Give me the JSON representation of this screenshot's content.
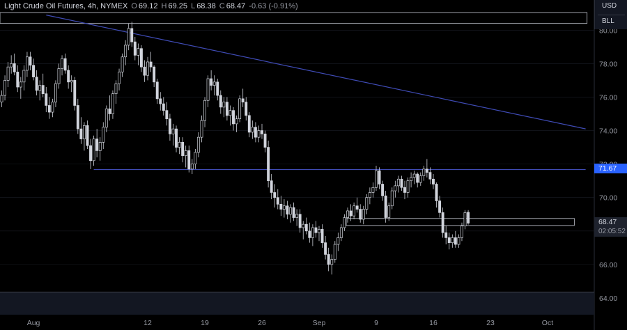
{
  "header": {
    "title": "Light Crude Oil Futures, 4h, NYMEX",
    "open_label": "O",
    "open": "69.12",
    "high_label": "H",
    "high": "69.25",
    "low_label": "L",
    "low": "68.38",
    "close_label": "C",
    "close": "68.47",
    "change": "-0.63 (-0.91%)"
  },
  "currency": {
    "primary": "USD",
    "secondary": "BLL"
  },
  "tags": {
    "level": "71.67",
    "price": "68.47",
    "countdown": "02:05:52"
  },
  "colors": {
    "background": "#000000",
    "candle": "#d1d4dc",
    "trendline": "#3f4bb5",
    "level_tag": "#2962ff",
    "grid": "#1a1d26"
  },
  "chart_data": {
    "type": "candlestick",
    "y_ticks": [
      "64.00",
      "66.00",
      "68.00",
      "70.00",
      "72.00",
      "74.00",
      "76.00",
      "78.00",
      "80.00"
    ],
    "ylim": [
      63.0,
      81.8
    ],
    "x_ticks": [
      "Aug",
      "12",
      "19",
      "26",
      "Sep",
      "9",
      "16",
      "23",
      "Oct"
    ],
    "x_tick_index": [
      10,
      46,
      64,
      82,
      100,
      118,
      136,
      154,
      172
    ],
    "series": [
      [
        75.7,
        76.4,
        75.4,
        76.1
      ],
      [
        76.1,
        77.3,
        75.8,
        77.0
      ],
      [
        77.0,
        78.1,
        76.6,
        77.8
      ],
      [
        77.8,
        78.5,
        77.4,
        78.0
      ],
      [
        78.0,
        78.6,
        77.3,
        77.5
      ],
      [
        77.5,
        77.9,
        76.3,
        76.6
      ],
      [
        76.6,
        77.2,
        75.9,
        76.9
      ],
      [
        76.9,
        77.9,
        76.4,
        77.6
      ],
      [
        77.6,
        78.7,
        77.2,
        78.4
      ],
      [
        78.4,
        78.7,
        77.6,
        77.9
      ],
      [
        77.9,
        78.3,
        77.0,
        77.2
      ],
      [
        77.2,
        77.6,
        76.1,
        76.4
      ],
      [
        76.4,
        77.0,
        75.8,
        76.7
      ],
      [
        76.7,
        77.4,
        76.0,
        76.2
      ],
      [
        76.2,
        76.6,
        75.1,
        75.5
      ],
      [
        75.5,
        76.0,
        74.7,
        75.1
      ],
      [
        75.1,
        75.9,
        74.8,
        75.7
      ],
      [
        75.7,
        77.0,
        75.4,
        76.8
      ],
      [
        76.8,
        78.0,
        76.5,
        77.7
      ],
      [
        77.7,
        78.5,
        77.3,
        78.3
      ],
      [
        78.3,
        78.6,
        77.4,
        77.6
      ],
      [
        77.6,
        77.9,
        76.5,
        76.9
      ],
      [
        76.9,
        77.3,
        76.3,
        77.0
      ],
      [
        77.0,
        77.2,
        75.2,
        75.5
      ],
      [
        75.5,
        75.9,
        73.8,
        74.1
      ],
      [
        74.1,
        74.8,
        73.2,
        73.5
      ],
      [
        73.5,
        74.5,
        72.8,
        74.3
      ],
      [
        74.3,
        74.6,
        72.9,
        73.1
      ],
      [
        73.1,
        73.5,
        71.7,
        72.2
      ],
      [
        72.2,
        73.7,
        71.9,
        73.5
      ],
      [
        73.5,
        74.1,
        72.4,
        72.8
      ],
      [
        72.8,
        73.6,
        72.2,
        73.3
      ],
      [
        73.3,
        74.5,
        72.9,
        74.2
      ],
      [
        74.2,
        75.5,
        73.9,
        75.3
      ],
      [
        75.3,
        76.1,
        74.6,
        75.0
      ],
      [
        75.0,
        76.4,
        74.7,
        76.2
      ],
      [
        76.2,
        77.0,
        75.6,
        76.8
      ],
      [
        76.8,
        77.7,
        76.4,
        77.5
      ],
      [
        77.5,
        78.6,
        77.2,
        78.4
      ],
      [
        78.4,
        79.4,
        77.9,
        79.1
      ],
      [
        79.1,
        80.4,
        78.8,
        80.1
      ],
      [
        80.1,
        80.5,
        79.0,
        79.3
      ],
      [
        79.3,
        79.6,
        78.2,
        78.5
      ],
      [
        78.5,
        79.2,
        77.9,
        78.9
      ],
      [
        78.9,
        79.1,
        77.5,
        77.8
      ],
      [
        77.8,
        78.2,
        76.9,
        77.3
      ],
      [
        77.3,
        78.4,
        77.0,
        78.1
      ],
      [
        78.1,
        78.7,
        77.5,
        77.8
      ],
      [
        77.8,
        77.9,
        76.6,
        76.9
      ],
      [
        76.9,
        77.1,
        75.6,
        75.9
      ],
      [
        75.9,
        76.3,
        75.2,
        75.6
      ],
      [
        75.6,
        76.0,
        74.9,
        75.2
      ],
      [
        75.2,
        75.7,
        74.3,
        74.7
      ],
      [
        74.7,
        75.0,
        73.4,
        73.8
      ],
      [
        73.8,
        74.4,
        73.1,
        74.1
      ],
      [
        74.1,
        74.3,
        72.7,
        73.0
      ],
      [
        73.0,
        73.6,
        72.6,
        73.3
      ],
      [
        73.3,
        73.6,
        72.1,
        72.5
      ],
      [
        72.5,
        73.1,
        71.8,
        72.8
      ],
      [
        72.8,
        73.1,
        71.5,
        71.7
      ],
      [
        71.7,
        72.3,
        71.4,
        72.0
      ],
      [
        72.0,
        72.9,
        71.7,
        72.7
      ],
      [
        72.7,
        73.9,
        72.4,
        73.6
      ],
      [
        73.6,
        74.9,
        73.3,
        74.6
      ],
      [
        74.6,
        76.0,
        74.2,
        75.8
      ],
      [
        75.8,
        77.3,
        75.4,
        77.1
      ],
      [
        77.1,
        77.6,
        76.4,
        76.7
      ],
      [
        76.7,
        77.3,
        76.1,
        76.9
      ],
      [
        76.9,
        77.1,
        75.8,
        76.1
      ],
      [
        76.1,
        76.4,
        75.0,
        75.4
      ],
      [
        75.4,
        76.0,
        74.8,
        75.7
      ],
      [
        75.7,
        76.0,
        74.6,
        74.9
      ],
      [
        74.9,
        75.5,
        74.3,
        75.2
      ],
      [
        75.2,
        75.4,
        74.0,
        74.4
      ],
      [
        74.4,
        74.9,
        73.9,
        74.7
      ],
      [
        74.7,
        76.1,
        74.5,
        75.9
      ],
      [
        75.9,
        76.5,
        75.4,
        75.7
      ],
      [
        75.7,
        76.0,
        74.6,
        74.9
      ],
      [
        74.9,
        75.1,
        73.6,
        73.9
      ],
      [
        73.9,
        74.6,
        73.5,
        74.2
      ],
      [
        74.2,
        74.5,
        73.3,
        73.6
      ],
      [
        73.6,
        74.3,
        73.3,
        74.0
      ],
      [
        74.0,
        74.4,
        73.5,
        73.8
      ],
      [
        73.8,
        74.0,
        72.7,
        73.0
      ],
      [
        73.0,
        73.4,
        70.6,
        71.0
      ],
      [
        71.0,
        71.4,
        69.9,
        70.3
      ],
      [
        70.3,
        70.8,
        69.4,
        70.0
      ],
      [
        70.0,
        70.5,
        69.3,
        69.6
      ],
      [
        69.6,
        70.1,
        68.9,
        69.3
      ],
      [
        69.3,
        69.9,
        68.8,
        69.5
      ],
      [
        69.5,
        69.8,
        68.7,
        69.0
      ],
      [
        69.0,
        69.6,
        68.5,
        69.4
      ],
      [
        69.4,
        69.7,
        68.6,
        68.8
      ],
      [
        68.8,
        69.3,
        68.3,
        69.0
      ],
      [
        69.0,
        69.3,
        67.9,
        68.2
      ],
      [
        68.2,
        68.6,
        67.5,
        68.4
      ],
      [
        68.4,
        68.8,
        67.8,
        68.0
      ],
      [
        68.0,
        68.5,
        67.3,
        67.6
      ],
      [
        67.6,
        68.4,
        67.1,
        68.2
      ],
      [
        68.2,
        68.6,
        67.6,
        67.9
      ],
      [
        67.9,
        68.3,
        67.4,
        68.1
      ],
      [
        68.1,
        68.4,
        67.0,
        67.3
      ],
      [
        67.3,
        67.7,
        66.3,
        66.6
      ],
      [
        66.6,
        67.0,
        65.6,
        66.0
      ],
      [
        66.0,
        66.6,
        65.4,
        66.3
      ],
      [
        66.3,
        67.4,
        66.1,
        67.2
      ],
      [
        67.2,
        67.9,
        66.8,
        67.6
      ],
      [
        67.6,
        68.4,
        67.4,
        68.2
      ],
      [
        68.2,
        69.0,
        68.0,
        68.8
      ],
      [
        68.8,
        69.4,
        68.5,
        69.2
      ],
      [
        69.2,
        69.6,
        68.6,
        68.9
      ],
      [
        68.9,
        69.7,
        68.7,
        69.5
      ],
      [
        69.5,
        70.0,
        69.1,
        69.3
      ],
      [
        69.3,
        69.6,
        68.5,
        68.7
      ],
      [
        68.7,
        69.5,
        68.4,
        69.3
      ],
      [
        69.3,
        70.2,
        69.0,
        70.0
      ],
      [
        70.0,
        70.6,
        69.6,
        70.3
      ],
      [
        70.3,
        70.9,
        70.0,
        70.6
      ],
      [
        70.6,
        71.9,
        70.4,
        71.6
      ],
      [
        71.6,
        71.8,
        70.5,
        70.8
      ],
      [
        70.8,
        71.0,
        69.8,
        70.1
      ],
      [
        70.1,
        70.4,
        68.5,
        68.8
      ],
      [
        68.8,
        69.7,
        68.6,
        69.5
      ],
      [
        69.5,
        70.6,
        69.3,
        70.4
      ],
      [
        70.4,
        71.0,
        70.0,
        70.7
      ],
      [
        70.7,
        71.3,
        70.3,
        71.1
      ],
      [
        71.1,
        71.3,
        70.4,
        70.6
      ],
      [
        70.6,
        71.0,
        69.9,
        70.3
      ],
      [
        70.3,
        71.2,
        70.0,
        71.0
      ],
      [
        71.0,
        71.5,
        70.6,
        71.2
      ],
      [
        71.2,
        71.6,
        70.8,
        71.4
      ],
      [
        71.4,
        71.5,
        70.6,
        70.9
      ],
      [
        70.9,
        71.5,
        70.7,
        71.3
      ],
      [
        71.3,
        71.9,
        71.0,
        71.7
      ],
      [
        71.7,
        72.3,
        71.2,
        71.5
      ],
      [
        71.5,
        71.8,
        70.8,
        71.1
      ],
      [
        71.1,
        71.4,
        70.5,
        70.8
      ],
      [
        70.8,
        70.9,
        69.4,
        69.8
      ],
      [
        69.8,
        70.1,
        68.8,
        69.1
      ],
      [
        69.1,
        69.4,
        67.6,
        67.9
      ],
      [
        67.9,
        68.3,
        67.2,
        67.6
      ],
      [
        67.6,
        67.9,
        66.9,
        67.3
      ],
      [
        67.3,
        67.8,
        67.0,
        67.6
      ],
      [
        67.6,
        68.0,
        67.0,
        67.2
      ],
      [
        67.2,
        67.8,
        67.0,
        67.6
      ],
      [
        67.6,
        68.5,
        67.4,
        68.3
      ],
      [
        68.3,
        69.25,
        68.1,
        69.1
      ],
      [
        69.12,
        69.25,
        68.38,
        68.47
      ]
    ],
    "lines": [
      {
        "name": "",
        "kind": "trend",
        "from": [
          14,
          80.9
        ],
        "to": [
          184,
          74.1
        ]
      },
      {
        "name": "",
        "kind": "horizontal",
        "from": [
          29,
          71.67
        ],
        "to": [
          184,
          71.67
        ]
      }
    ],
    "zones": [
      {
        "from_index": 109,
        "to_index": 180,
        "low": 68.33,
        "high": 68.75
      },
      {
        "from_index": 0,
        "to_index": 184,
        "low": 80.4,
        "high": 81.05
      }
    ]
  }
}
